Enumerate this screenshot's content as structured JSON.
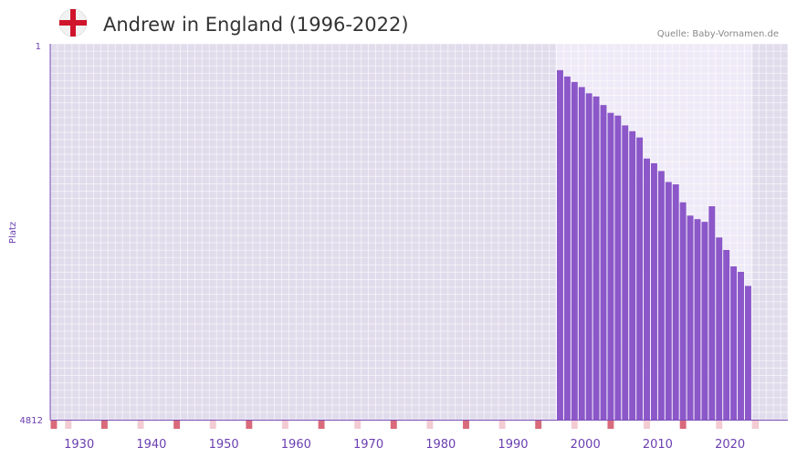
{
  "header": {
    "flag_icon": "england-flag-icon",
    "title": "Andrew in England (1996-2022)",
    "source": "Quelle: Baby-Vornamen.de"
  },
  "colors": {
    "bar": "#8b57c9",
    "plot_bg": "#e1dcec",
    "plot_bg_light": "#efeaf7",
    "accent_text": "#6a3fb0",
    "marker_strong": "#d96a7b",
    "marker_light": "#f3cbd3"
  },
  "chart_data": {
    "type": "bar",
    "title": "Andrew in England (1996-2022)",
    "xlabel": "",
    "ylabel": "Platz",
    "y_inverted": true,
    "ylim": [
      1,
      4812
    ],
    "xlim": [
      1926,
      2027
    ],
    "y_tick_labels": [
      "1",
      "4812"
    ],
    "x_tick_labels": [
      "1930",
      "1940",
      "1950",
      "1960",
      "1970",
      "1980",
      "1990",
      "2000",
      "2010",
      "2020"
    ],
    "x_ticks": [
      1930,
      1940,
      1950,
      1960,
      1970,
      1980,
      1990,
      2000,
      2010,
      2020
    ],
    "highlight_range": [
      1996,
      2022
    ],
    "years": [
      1996,
      1997,
      1998,
      1999,
      2000,
      2001,
      2002,
      2003,
      2004,
      2005,
      2006,
      2007,
      2008,
      2009,
      2010,
      2011,
      2012,
      2013,
      2014,
      2015,
      2016,
      2017,
      2018,
      2019,
      2020,
      2021,
      2022
    ],
    "values": [
      338,
      420,
      490,
      555,
      635,
      675,
      785,
      885,
      920,
      1045,
      1120,
      1200,
      1470,
      1530,
      1630,
      1770,
      1800,
      2030,
      2200,
      2245,
      2280,
      2080,
      2480,
      2640,
      2850,
      2920,
      3100
    ]
  }
}
